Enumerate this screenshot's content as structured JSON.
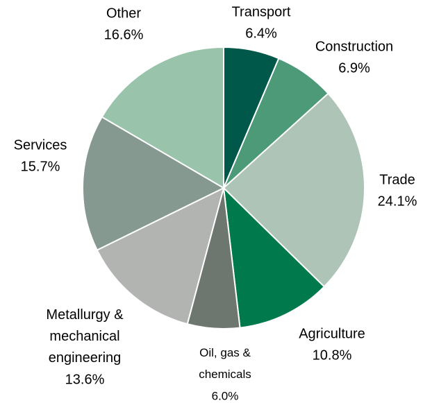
{
  "chart_data": {
    "type": "pie",
    "categories": [
      "Transport",
      "Construction",
      "Trade",
      "Agriculture",
      "Oil, gas &\nchemicals",
      "Metallurgy &\nmechanical\nengineering",
      "Services",
      "Other"
    ],
    "values": [
      6.4,
      6.9,
      24.1,
      10.8,
      6.0,
      13.6,
      15.7,
      16.6
    ],
    "value_labels": [
      "6.4%",
      "6.9%",
      "24.1%",
      "10.8%",
      "6.0%",
      "13.6%",
      "15.7%",
      "16.6%"
    ],
    "colors": [
      "#00584a",
      "#4d9a78",
      "#adc4b6",
      "#007a4c",
      "#6e7670",
      "#b2b4b2",
      "#869990",
      "#99c4ab"
    ]
  }
}
